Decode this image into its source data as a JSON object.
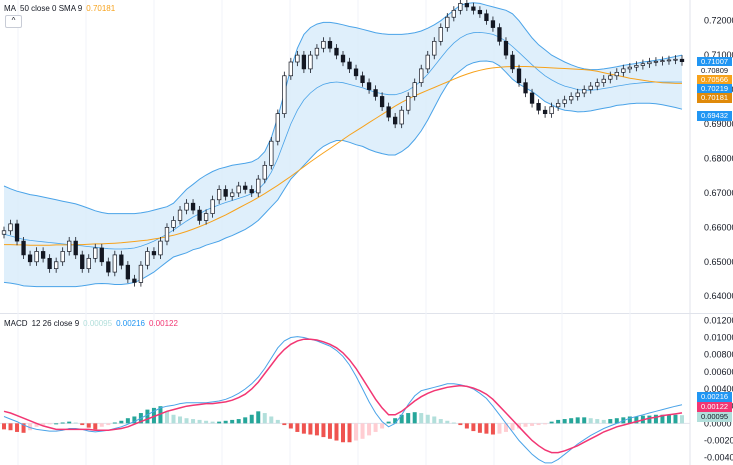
{
  "legend_top": {
    "name": "MA",
    "params": "50 close 0 SMA 9",
    "value": "0.70181",
    "value_color": "#f7a21b"
  },
  "legend_bottom": {
    "name": "MACD",
    "params": "12 26 close 9",
    "hist_value": "0.00095",
    "macd_value": "0.00216",
    "signal_value": "0.00122"
  },
  "collapse_icon": "chevron-up-icon",
  "collapse_symbol": "^",
  "colors": {
    "band_line": "#4aa3e8",
    "band_fill": "#d7ebfa",
    "ma_line": "#f7a21b",
    "basis_line": "#4aa3e8",
    "candle": "#131722",
    "hist_up_strong": "#26a69a",
    "hist_up_weak": "#b2dfdb",
    "hist_down_strong": "#ef5350",
    "hist_down_weak": "#ffcdd2",
    "macd_line": "#4aa3e8",
    "signal_line": "#f23673"
  },
  "price_axis_labels": [
    "0.72000",
    "0.71000",
    "0.70000",
    "0.69000",
    "0.68000",
    "0.67000",
    "0.66000",
    "0.65000",
    "0.64000"
  ],
  "macd_axis_labels": [
    "0.01200",
    "0.01000",
    "0.00800",
    "0.00600",
    "0.00400",
    "0.00200",
    "0.0000",
    "-0.00200",
    "-0.00400"
  ],
  "price_tags": [
    {
      "text": "0.71007",
      "color": "#2196f3"
    },
    {
      "text": "0.70809",
      "color": "#ffffff",
      "text_color": "#131722"
    },
    {
      "text": "0.70566",
      "color": "#f7a21b"
    },
    {
      "text": "0.70219",
      "color": "#2196f3"
    },
    {
      "text": "0.70181",
      "color": "#e08a0b"
    },
    {
      "text": "0.69432",
      "color": "#2196f3"
    }
  ],
  "macd_tags": [
    {
      "text": "0.00216",
      "color": "#2196f3"
    },
    {
      "text": "0.00122",
      "color": "#f23673"
    },
    {
      "text": "0.00095",
      "color": "#b2dfdb",
      "text_color": "#131722"
    }
  ],
  "chart_data": [
    {
      "type": "line",
      "title": "",
      "ylim": [
        0.636,
        0.726
      ],
      "series": [
        {
          "name": "Bollinger Upper",
          "values": [
            0.672,
            0.6712,
            0.6705,
            0.67,
            0.6695,
            0.6692,
            0.6688,
            0.6684,
            0.668,
            0.6676,
            0.6672,
            0.6668,
            0.6662,
            0.6655,
            0.6648,
            0.6643,
            0.664,
            0.664,
            0.664,
            0.664,
            0.664,
            0.6642,
            0.6645,
            0.665,
            0.6655,
            0.666,
            0.667,
            0.669,
            0.671,
            0.6725,
            0.674,
            0.6752,
            0.6762,
            0.677,
            0.6775,
            0.678,
            0.6783,
            0.6786,
            0.679,
            0.68,
            0.682,
            0.686,
            0.692,
            0.699,
            0.706,
            0.712,
            0.716,
            0.718,
            0.719,
            0.7195,
            0.7195,
            0.7192,
            0.7188,
            0.7183,
            0.718,
            0.7175,
            0.717,
            0.7165,
            0.7162,
            0.716,
            0.716,
            0.716,
            0.7162,
            0.7165,
            0.717,
            0.7178,
            0.7188,
            0.72,
            0.7215,
            0.723,
            0.7245,
            0.725,
            0.7252,
            0.725,
            0.7245,
            0.724,
            0.7235,
            0.723,
            0.722,
            0.72,
            0.7175,
            0.715,
            0.713,
            0.7115,
            0.71,
            0.709,
            0.708,
            0.7072,
            0.7065,
            0.706,
            0.7058,
            0.7058,
            0.706,
            0.7063,
            0.7066,
            0.707,
            0.7073,
            0.7076,
            0.708,
            0.7082,
            0.7085,
            0.7088,
            0.7092,
            0.7096,
            0.71
          ]
        },
        {
          "name": "Bollinger Basis",
          "values": [
            0.658,
            0.6575,
            0.657,
            0.6565,
            0.6562,
            0.656,
            0.6558,
            0.6556,
            0.6554,
            0.6552,
            0.655,
            0.6548,
            0.6546,
            0.6544,
            0.6542,
            0.654,
            0.6538,
            0.6537,
            0.6537,
            0.6538,
            0.654,
            0.6545,
            0.6552,
            0.656,
            0.657,
            0.658,
            0.6592,
            0.6605,
            0.6618,
            0.663,
            0.664,
            0.665,
            0.6658,
            0.6665,
            0.6672,
            0.6678,
            0.6684,
            0.669,
            0.6698,
            0.671,
            0.673,
            0.676,
            0.68,
            0.685,
            0.69,
            0.694,
            0.697,
            0.699,
            0.7005,
            0.7015,
            0.702,
            0.7022,
            0.702,
            0.7015,
            0.701,
            0.7005,
            0.6998,
            0.6992,
            0.6988,
            0.6985,
            0.6985,
            0.699,
            0.6998,
            0.701,
            0.7025,
            0.7045,
            0.7068,
            0.7092,
            0.7115,
            0.7135,
            0.715,
            0.716,
            0.7165,
            0.7166,
            0.7164,
            0.716,
            0.7152,
            0.714,
            0.7125,
            0.7108,
            0.709,
            0.7072,
            0.7055,
            0.704,
            0.7028,
            0.7018,
            0.701,
            0.7005,
            0.7,
            0.6998,
            0.6998,
            0.7,
            0.7003,
            0.7006,
            0.701,
            0.7013,
            0.7016,
            0.7018,
            0.702,
            0.7021,
            0.7022,
            0.7022,
            0.7022,
            0.7022,
            0.7022
          ]
        },
        {
          "name": "Bollinger Lower",
          "values": [
            0.644,
            0.6438,
            0.6435,
            0.643,
            0.6429,
            0.6428,
            0.6428,
            0.6428,
            0.6428,
            0.6428,
            0.6428,
            0.6428,
            0.643,
            0.6433,
            0.6436,
            0.6437,
            0.6436,
            0.6434,
            0.6434,
            0.6436,
            0.644,
            0.6448,
            0.6459,
            0.647,
            0.6485,
            0.65,
            0.6514,
            0.652,
            0.6526,
            0.6535,
            0.654,
            0.6548,
            0.6554,
            0.656,
            0.6569,
            0.6576,
            0.6585,
            0.6594,
            0.6606,
            0.662,
            0.664,
            0.666,
            0.668,
            0.671,
            0.674,
            0.676,
            0.678,
            0.68,
            0.682,
            0.6835,
            0.6845,
            0.6852,
            0.6852,
            0.6847,
            0.684,
            0.6835,
            0.6826,
            0.6819,
            0.6814,
            0.681,
            0.681,
            0.682,
            0.6834,
            0.6855,
            0.688,
            0.6912,
            0.6948,
            0.6984,
            0.7015,
            0.704,
            0.7055,
            0.707,
            0.7078,
            0.7082,
            0.7083,
            0.708,
            0.7069,
            0.705,
            0.703,
            0.7016,
            0.7005,
            0.6994,
            0.698,
            0.6965,
            0.6956,
            0.6946,
            0.694,
            0.6938,
            0.6935,
            0.6936,
            0.6938,
            0.6942,
            0.6946,
            0.6949,
            0.6954,
            0.6956,
            0.6959,
            0.696,
            0.696,
            0.696,
            0.6959,
            0.6956,
            0.6952,
            0.6948,
            0.6943
          ]
        },
        {
          "name": "MA 50",
          "values": [
            0.655,
            0.655,
            0.6549,
            0.6549,
            0.6548,
            0.6548,
            0.6548,
            0.6548,
            0.6549,
            0.6549,
            0.6549,
            0.655,
            0.655,
            0.6551,
            0.6552,
            0.6552,
            0.6553,
            0.6554,
            0.6555,
            0.6557,
            0.6559,
            0.6561,
            0.6563,
            0.6566,
            0.6569,
            0.6573,
            0.6577,
            0.6582,
            0.6588,
            0.6595,
            0.6602,
            0.661,
            0.6618,
            0.6627,
            0.6636,
            0.6646,
            0.6656,
            0.6666,
            0.6676,
            0.6687,
            0.6698,
            0.671,
            0.6722,
            0.6735,
            0.6748,
            0.6762,
            0.6776,
            0.679,
            0.6803,
            0.6816,
            0.6829,
            0.6842,
            0.6855,
            0.6868,
            0.688,
            0.6892,
            0.6904,
            0.6916,
            0.6928,
            0.694,
            0.6952,
            0.6963,
            0.6973,
            0.6982,
            0.699,
            0.6998,
            0.7006,
            0.7014,
            0.7022,
            0.703,
            0.7038,
            0.7045,
            0.7051,
            0.7056,
            0.706,
            0.7063,
            0.7065,
            0.7066,
            0.7067,
            0.7067,
            0.7067,
            0.7066,
            0.7065,
            0.7064,
            0.7063,
            0.7062,
            0.7061,
            0.706,
            0.7059,
            0.7058,
            0.7056,
            0.7053,
            0.7049,
            0.7045,
            0.7041,
            0.7037,
            0.7033,
            0.703,
            0.7027,
            0.7024,
            0.7022,
            0.702,
            0.7019,
            0.7018,
            0.7018
          ]
        },
        {
          "name": "Close",
          "values": [
            0.659,
            0.661,
            0.656,
            0.652,
            0.65,
            0.653,
            0.651,
            0.648,
            0.65,
            0.653,
            0.656,
            0.652,
            0.648,
            0.651,
            0.654,
            0.65,
            0.647,
            0.652,
            0.649,
            0.645,
            0.644,
            0.649,
            0.653,
            0.652,
            0.656,
            0.66,
            0.662,
            0.665,
            0.667,
            0.665,
            0.662,
            0.664,
            0.668,
            0.671,
            0.669,
            0.67,
            0.672,
            0.671,
            0.67,
            0.674,
            0.678,
            0.685,
            0.693,
            0.704,
            0.708,
            0.71,
            0.706,
            0.71,
            0.712,
            0.714,
            0.712,
            0.71,
            0.708,
            0.706,
            0.704,
            0.702,
            0.7,
            0.698,
            0.695,
            0.692,
            0.69,
            0.694,
            0.698,
            0.702,
            0.706,
            0.71,
            0.714,
            0.718,
            0.721,
            0.723,
            0.725,
            0.724,
            0.723,
            0.722,
            0.72,
            0.718,
            0.714,
            0.71,
            0.706,
            0.702,
            0.699,
            0.696,
            0.694,
            0.693,
            0.695,
            0.696,
            0.697,
            0.698,
            0.699,
            0.7,
            0.701,
            0.702,
            0.703,
            0.704,
            0.705,
            0.706,
            0.7065,
            0.707,
            0.7075,
            0.708,
            0.7082,
            0.7084,
            0.7086,
            0.7088,
            0.7081
          ]
        }
      ]
    },
    {
      "type": "bar",
      "title": "",
      "ylim": [
        -0.0045,
        0.0125
      ],
      "series": [
        {
          "name": "Histogram",
          "values": [
            -0.0007,
            -0.0008,
            -0.001,
            -0.0011,
            -0.0008,
            -0.0004,
            -0.0002,
            -0.0001,
            0.0,
            0.0001,
            0.0002,
            0.0001,
            -0.0002,
            -0.0005,
            -0.0007,
            -0.0004,
            -0.0002,
            0.0001,
            0.0003,
            0.0006,
            0.0008,
            0.0012,
            0.0016,
            0.0018,
            0.002,
            0.0014,
            0.001,
            0.0008,
            0.0006,
            0.0005,
            0.0004,
            0.0003,
            0.0002,
            0.0002,
            0.0003,
            0.0004,
            0.0005,
            0.0007,
            0.001,
            0.0014,
            0.0012,
            0.0008,
            0.0004,
            -0.0002,
            -0.0006,
            -0.001,
            -0.0012,
            -0.0013,
            -0.0014,
            -0.0016,
            -0.0018,
            -0.002,
            -0.0022,
            -0.0022,
            -0.002,
            -0.0018,
            -0.0014,
            -0.001,
            -0.0006,
            0.0002,
            0.0006,
            0.001,
            0.0012,
            0.0013,
            0.0012,
            0.001,
            0.0008,
            0.0005,
            0.0003,
            0.0001,
            -0.0002,
            -0.0006,
            -0.0009,
            -0.0011,
            -0.0012,
            -0.0013,
            -0.0012,
            -0.001,
            -0.0008,
            -0.0006,
            -0.0004,
            -0.0003,
            -0.0002,
            -0.0001,
            0.0002,
            0.0004,
            0.0005,
            0.0006,
            0.0007,
            0.0007,
            0.0006,
            0.0005,
            0.0004,
            0.0005,
            0.0006,
            0.0007,
            0.0008,
            0.0008,
            0.0009,
            0.0009,
            0.001,
            0.001,
            0.001,
            0.001,
            0.00095
          ]
        },
        {
          "name": "MACD",
          "values": [
            0.0008,
            0.0005,
            0.0002,
            -0.0002,
            -0.0005,
            -0.0007,
            -0.0008,
            -0.0009,
            -0.0009,
            -0.0008,
            -0.0006,
            -0.0006,
            -0.0007,
            -0.0009,
            -0.001,
            -0.0009,
            -0.0008,
            -0.0006,
            -0.0004,
            -0.0001,
            0.0002,
            0.0006,
            0.001,
            0.0014,
            0.0018,
            0.002,
            0.0021,
            0.0023,
            0.0024,
            0.0024,
            0.0024,
            0.0024,
            0.0025,
            0.0026,
            0.0028,
            0.0031,
            0.0035,
            0.004,
            0.0046,
            0.0054,
            0.0064,
            0.0076,
            0.0088,
            0.0096,
            0.01,
            0.0101,
            0.01,
            0.0098,
            0.0096,
            0.0093,
            0.009,
            0.0085,
            0.0078,
            0.0068,
            0.0055,
            0.004,
            0.0025,
            0.0012,
            0.0002,
            -0.0004,
            0.0,
            0.001,
            0.0022,
            0.0032,
            0.0038,
            0.004,
            0.0042,
            0.0044,
            0.0046,
            0.0046,
            0.0045,
            0.0043,
            0.004,
            0.0035,
            0.0029,
            0.002,
            0.001,
            0.0,
            -0.001,
            -0.002,
            -0.0028,
            -0.0036,
            -0.0042,
            -0.0046,
            -0.0046,
            -0.0042,
            -0.0036,
            -0.003,
            -0.0024,
            -0.0019,
            -0.0014,
            -0.001,
            -0.0006,
            -0.0003,
            0.0,
            0.0003,
            0.0006,
            0.0008,
            0.001,
            0.0012,
            0.0014,
            0.0016,
            0.0018,
            0.002,
            0.00216
          ]
        },
        {
          "name": "Signal",
          "values": [
            0.0014,
            0.0012,
            0.0009,
            0.0006,
            0.0003,
            0.0,
            -0.0003,
            -0.0005,
            -0.0007,
            -0.0007,
            -0.0007,
            -0.0007,
            -0.0007,
            -0.0007,
            -0.0008,
            -0.0008,
            -0.0008,
            -0.0007,
            -0.0006,
            -0.0004,
            -0.0001,
            0.0002,
            0.0005,
            0.0008,
            0.0011,
            0.0014,
            0.0016,
            0.0018,
            0.002,
            0.0021,
            0.0022,
            0.0023,
            0.0023,
            0.0024,
            0.0025,
            0.0027,
            0.003,
            0.0034,
            0.004,
            0.0048,
            0.0058,
            0.0068,
            0.0078,
            0.0086,
            0.0092,
            0.0096,
            0.0098,
            0.0098,
            0.0097,
            0.0095,
            0.0092,
            0.0088,
            0.0082,
            0.0074,
            0.0064,
            0.0052,
            0.004,
            0.0028,
            0.0018,
            0.001,
            0.001,
            0.0014,
            0.002,
            0.0026,
            0.0031,
            0.0035,
            0.0038,
            0.004,
            0.0042,
            0.0043,
            0.0044,
            0.0043,
            0.0041,
            0.0038,
            0.0034,
            0.0028,
            0.002,
            0.0012,
            0.0004,
            -0.0004,
            -0.0012,
            -0.002,
            -0.0026,
            -0.0031,
            -0.0034,
            -0.0034,
            -0.0032,
            -0.0029,
            -0.0026,
            -0.0022,
            -0.0018,
            -0.0014,
            -0.001,
            -0.0007,
            -0.0004,
            -0.0002,
            0.0,
            0.0002,
            0.0004,
            0.0006,
            0.0007,
            0.0009,
            0.001,
            0.0011,
            0.00122
          ]
        }
      ]
    }
  ]
}
